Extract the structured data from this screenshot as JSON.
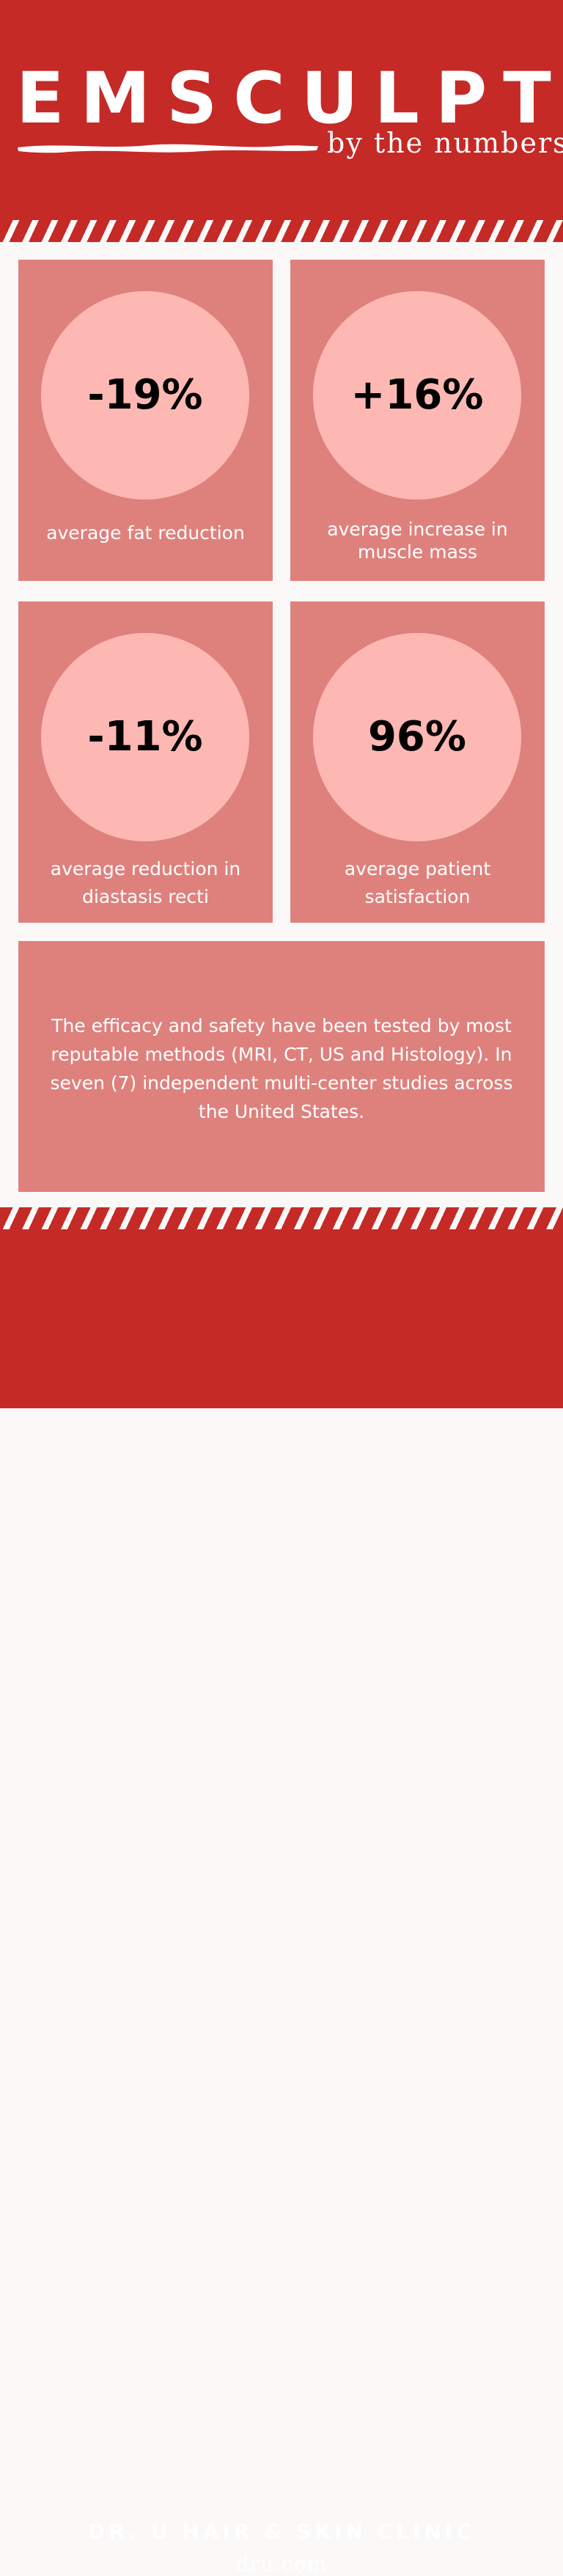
{
  "header": {
    "title": "EMSCULPT",
    "subtitle": "by the numbers"
  },
  "stats": [
    {
      "value": "-19%",
      "label": "average fat reduction"
    },
    {
      "value": "+16%",
      "label": "average increase in muscle mass"
    },
    {
      "value": "-11%",
      "label": "average reduction in diastasis recti"
    },
    {
      "value": "96%",
      "label": "average patient satisfaction"
    }
  ],
  "info": {
    "text": "The efficacy and safety have been tested by most reputable methods (MRI, CT, US and Histology). In seven (7) independent multi-center studies across the United States."
  },
  "footer": {
    "clinic": "DR. U HAIR & SKIN CLINIC",
    "website": "dru.com"
  },
  "colors": {
    "primary_red": "#c52a26",
    "card_pink": "#de817d",
    "circle_pink": "#feb8b3",
    "background": "#fbf9f8"
  }
}
